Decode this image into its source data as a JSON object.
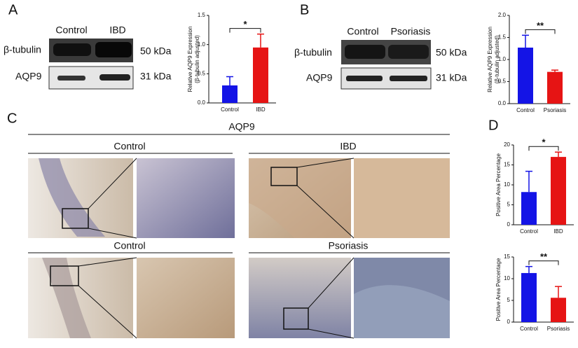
{
  "panel_labels": [
    "A",
    "B",
    "C",
    "D"
  ],
  "blots": [
    {
      "lanes": [
        "Control",
        "IBD"
      ],
      "rows": [
        {
          "protein": "β-tubulin",
          "size": "50 kDa"
        },
        {
          "protein": "AQP9",
          "size": "31 kDa"
        }
      ]
    },
    {
      "lanes": [
        "Control",
        "Psoriasis"
      ],
      "rows": [
        {
          "protein": "β-tubulin",
          "size": "50 kDa"
        },
        {
          "protein": "AQP9",
          "size": "31 kDa"
        }
      ]
    }
  ],
  "histology": {
    "title": "AQP9",
    "groups": [
      "Control",
      "IBD",
      "Control",
      "Psoriasis"
    ]
  },
  "chart_data": [
    {
      "type": "bar",
      "ylabel": [
        "Relative AQP9 Expression",
        "(β-tubulin adjusted)"
      ],
      "categories": [
        "Control",
        "IBD"
      ],
      "values": [
        0.3,
        0.95
      ],
      "errors": [
        0.15,
        0.23
      ],
      "colors": [
        "#1414e6",
        "#e61414"
      ],
      "annotation": "*",
      "ylim": [
        0,
        1.5
      ],
      "yticks": [
        {
          "value": 0,
          "label": "0.0"
        },
        {
          "value": 0.5,
          "label": "0.5"
        },
        {
          "value": 1,
          "label": "1.0"
        },
        {
          "value": 1.5,
          "label": "1.5"
        }
      ]
    },
    {
      "type": "bar",
      "ylabel": [
        "Relative AQP9 Expression",
        "(β-tubulin adjusted)"
      ],
      "categories": [
        "Control",
        "Psoriasis"
      ],
      "values": [
        1.27,
        0.72
      ],
      "errors": [
        0.28,
        0.04
      ],
      "colors": [
        "#1414e6",
        "#e61414"
      ],
      "annotation": "**",
      "ylim": [
        0,
        2
      ],
      "yticks": [
        {
          "value": 0,
          "label": "0.0"
        },
        {
          "value": 0.5,
          "label": "0.5"
        },
        {
          "value": 1,
          "label": "1.0"
        },
        {
          "value": 1.5,
          "label": "1.5"
        },
        {
          "value": 2,
          "label": "2.0"
        }
      ]
    },
    {
      "type": "bar",
      "ylabel": "Positive Area Percentage",
      "categories": [
        "Control",
        "IBD"
      ],
      "values": [
        8.2,
        17
      ],
      "errors": [
        5.2,
        1.2
      ],
      "colors": [
        "#1414e6",
        "#e61414"
      ],
      "annotation": "*",
      "ylim": [
        0,
        20
      ],
      "yticks": [
        0,
        5,
        10,
        15,
        20
      ]
    },
    {
      "type": "bar",
      "ylabel": "Positive Area Percentage",
      "categories": [
        "Control",
        "Psoriasis"
      ],
      "values": [
        11.3,
        5.6
      ],
      "errors": [
        1.5,
        2.6
      ],
      "colors": [
        "#1414e6",
        "#e61414"
      ],
      "annotation": "**",
      "ylim": [
        0,
        15
      ],
      "yticks": [
        0,
        5,
        10,
        15
      ]
    }
  ]
}
